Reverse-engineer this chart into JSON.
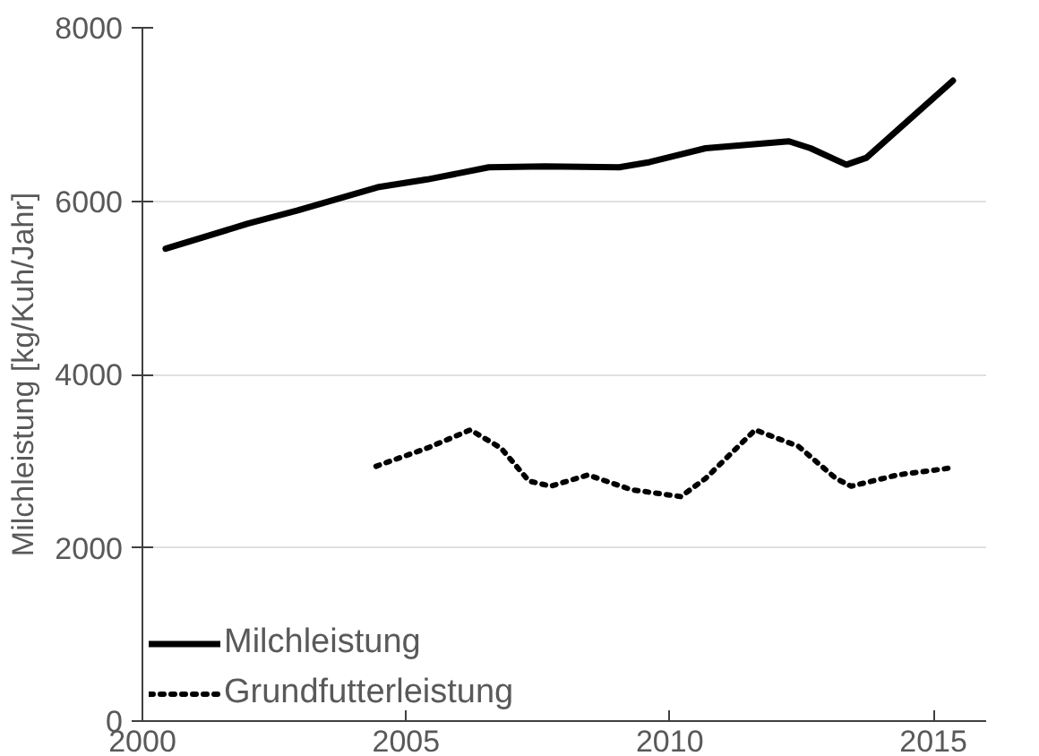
{
  "chart_data": {
    "type": "line",
    "ylabel": "Milchleistung [kg/Kuh/Jahr]",
    "xlim": [
      2000,
      2016
    ],
    "xticks": [
      2000,
      2005,
      2010,
      2015
    ],
    "ylim": [
      0,
      8000
    ],
    "yticks": [
      0,
      2000,
      4000,
      6000,
      8000
    ],
    "grid": "y",
    "legend": "bottom left",
    "marker": "none",
    "series": [
      {
        "name": "Milchleistung",
        "color": "#000000",
        "line_style": "solid",
        "x": [
          2000.44,
          2002.0,
          2002.93,
          2004.46,
          2005.4,
          2006.57,
          2007.63,
          2009.04,
          2009.62,
          2010.68,
          2011.5,
          2012.26,
          2012.67,
          2013.35,
          2013.73,
          2015.37
        ],
        "values": [
          5450,
          5740,
          5890,
          6160,
          6250,
          6390,
          6400,
          6390,
          6450,
          6610,
          6650,
          6690,
          6610,
          6420,
          6500,
          7390
        ]
      },
      {
        "name": "Grundfutterleistung",
        "color": "#000000",
        "line_style": "dotted",
        "x": [
          2004.43,
          2005.4,
          2006.22,
          2006.8,
          2007.33,
          2007.74,
          2008.45,
          2009.27,
          2010.21,
          2010.68,
          2011.62,
          2012.44,
          2013.15,
          2013.44,
          2014.32,
          2015.32
        ],
        "values": [
          2940,
          3150,
          3360,
          3150,
          2770,
          2710,
          2840,
          2670,
          2590,
          2800,
          3360,
          3170,
          2800,
          2710,
          2840,
          2920
        ]
      }
    ]
  }
}
